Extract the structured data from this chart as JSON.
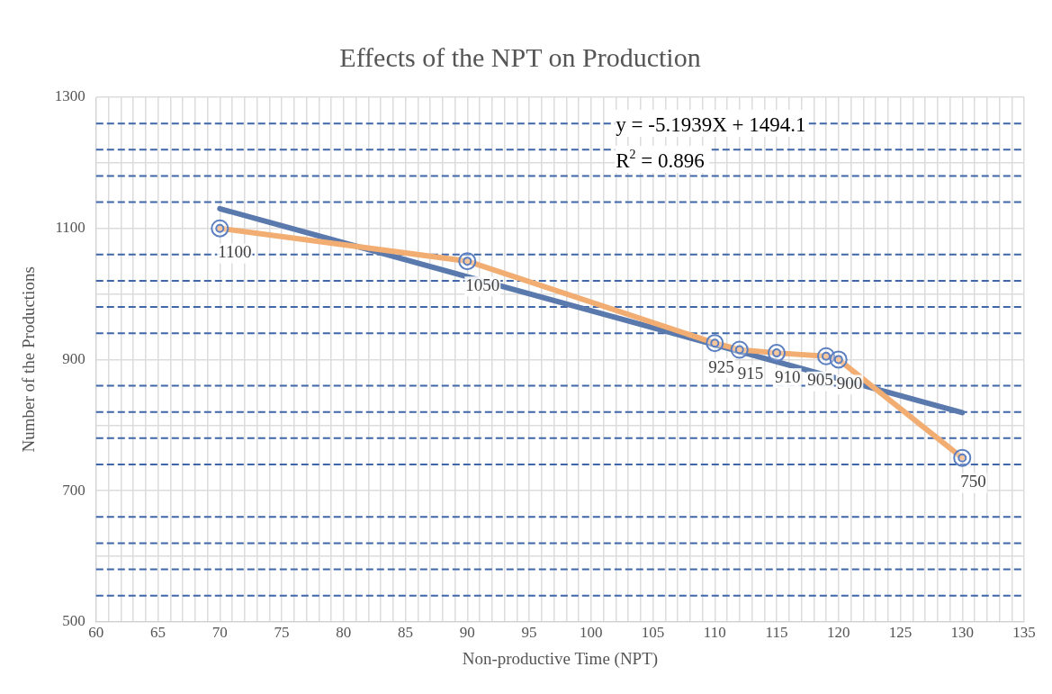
{
  "chart_data": {
    "type": "scatter",
    "title": "Effects of the NPT on Production",
    "xlabel": "Non-productive Time (NPT)",
    "ylabel": "Number of the Productions",
    "xlim": [
      60,
      135
    ],
    "xticks": [
      60,
      {
        "value": 61,
        "label": null
      },
      {
        "value": 62,
        "label": null
      },
      {
        "value": 63,
        "label": null
      },
      {
        "value": 64,
        "label": null
      },
      65,
      {
        "value": 66,
        "label": null
      },
      {
        "value": 67,
        "label": null
      },
      {
        "value": 68,
        "label": null
      },
      {
        "value": 69,
        "label": null
      },
      70,
      {
        "value": 71,
        "label": null
      },
      {
        "value": 72,
        "label": null
      },
      {
        "value": 73,
        "label": null
      },
      {
        "value": 74,
        "label": null
      },
      75,
      {
        "value": 76,
        "label": null
      },
      {
        "value": 77,
        "label": null
      },
      {
        "value": 78,
        "label": null
      },
      {
        "value": 79,
        "label": null
      },
      80,
      {
        "value": 81,
        "label": null
      },
      {
        "value": 82,
        "label": null
      },
      {
        "value": 83,
        "label": null
      },
      {
        "value": 84,
        "label": null
      },
      85,
      {
        "value": 86,
        "label": null
      },
      {
        "value": 87,
        "label": null
      },
      {
        "value": 88,
        "label": null
      },
      {
        "value": 89,
        "label": null
      },
      90,
      {
        "value": 91,
        "label": null
      },
      {
        "value": 92,
        "label": null
      },
      {
        "value": 93,
        "label": null
      },
      {
        "value": 94,
        "label": null
      },
      95,
      {
        "value": 96,
        "label": null
      },
      {
        "value": 97,
        "label": null
      },
      {
        "value": 98,
        "label": null
      },
      {
        "value": 99,
        "label": null
      },
      100,
      {
        "value": 101,
        "label": null
      },
      {
        "value": 102,
        "label": null
      },
      {
        "value": 103,
        "label": null
      },
      {
        "value": 104,
        "label": null
      },
      105,
      {
        "value": 106,
        "label": null
      },
      {
        "value": 107,
        "label": null
      },
      {
        "value": 108,
        "label": null
      },
      {
        "value": 109,
        "label": null
      },
      110,
      {
        "value": 111,
        "label": null
      },
      {
        "value": 112,
        "label": null
      },
      {
        "value": 113,
        "label": null
      },
      {
        "value": 114,
        "label": null
      },
      115,
      {
        "value": 116,
        "label": null
      },
      {
        "value": 117,
        "label": null
      },
      {
        "value": 118,
        "label": null
      },
      {
        "value": 119,
        "label": null
      },
      120,
      {
        "value": 121,
        "label": null
      },
      {
        "value": 122,
        "label": null
      },
      {
        "value": 123,
        "label": null
      },
      {
        "value": 124,
        "label": null
      },
      125,
      {
        "value": 126,
        "label": null
      },
      {
        "value": 127,
        "label": null
      },
      {
        "value": 128,
        "label": null
      },
      {
        "value": 129,
        "label": null
      },
      130,
      {
        "value": 131,
        "label": null
      },
      {
        "value": 132,
        "label": null
      },
      {
        "value": 133,
        "label": null
      },
      {
        "value": 134,
        "label": null
      },
      135
    ],
    "ylim": [
      500,
      1300
    ],
    "yticks": [
      500,
      {
        "value": 600,
        "label": null
      },
      700,
      {
        "value": 800,
        "label": null
      },
      900,
      {
        "value": 1000,
        "label": null
      },
      1100,
      {
        "value": 1200,
        "label": null
      },
      1300
    ],
    "grid": true,
    "series": [
      {
        "type": "line",
        "color": "#f2ad72",
        "x": [
          70,
          90,
          110,
          112,
          115,
          119,
          120,
          130
        ],
        "values": [
          1100,
          1050,
          925,
          915,
          910,
          905,
          900,
          750
        ],
        "value_labels": [
          "1100",
          "1050",
          "925",
          "915",
          "910",
          "905",
          "900",
          "750"
        ],
        "marker": "circle"
      },
      {
        "type": "line",
        "color": "#5a79ad",
        "x": [
          70,
          130
        ],
        "values": [
          1130,
          819
        ],
        "marker": "none"
      }
    ],
    "ref_lines": [
      {
        "axis": "y",
        "value": 540,
        "color": "#3f66a8",
        "line_style": "dashed"
      },
      {
        "axis": "y",
        "value": 580,
        "color": "#3f66a8",
        "line_style": "dashed"
      },
      {
        "axis": "y",
        "value": 620,
        "color": "#3f66a8",
        "line_style": "dashed"
      },
      {
        "axis": "y",
        "value": 660,
        "color": "#3f66a8",
        "line_style": "dashed"
      },
      {
        "axis": "y",
        "value": 740,
        "color": "#3f66a8",
        "line_style": "dashed"
      },
      {
        "axis": "y",
        "value": 780,
        "color": "#3f66a8",
        "line_style": "dashed"
      },
      {
        "axis": "y",
        "value": 820,
        "color": "#3f66a8",
        "line_style": "dashed"
      },
      {
        "axis": "y",
        "value": 860,
        "color": "#3f66a8",
        "line_style": "dashed"
      },
      {
        "axis": "y",
        "value": 940,
        "color": "#3f66a8",
        "line_style": "dashed"
      },
      {
        "axis": "y",
        "value": 980,
        "color": "#3f66a8",
        "line_style": "dashed"
      },
      {
        "axis": "y",
        "value": 1020,
        "color": "#3f66a8",
        "line_style": "dashed"
      },
      {
        "axis": "y",
        "value": 1060,
        "color": "#3f66a8",
        "line_style": "dashed"
      },
      {
        "axis": "y",
        "value": 1140,
        "color": "#3f66a8",
        "line_style": "dashed"
      },
      {
        "axis": "y",
        "value": 1180,
        "color": "#3f66a8",
        "line_style": "dashed"
      },
      {
        "axis": "y",
        "value": 1220,
        "color": "#3f66a8",
        "line_style": "dashed"
      },
      {
        "axis": "y",
        "value": 1260,
        "color": "#3f66a8",
        "line_style": "dashed"
      }
    ],
    "annotations": [
      "y = -5.1939X + 1494.1",
      "R$^{2}$ = 0.896"
    ]
  }
}
